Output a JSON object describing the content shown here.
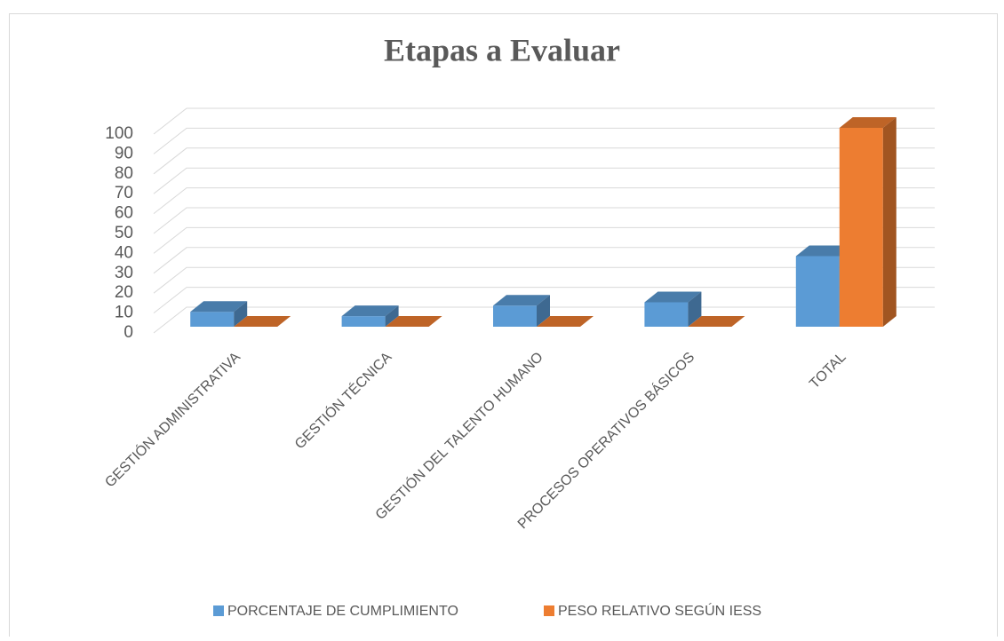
{
  "chart_data": {
    "type": "bar3d",
    "title": "Etapas a Evaluar",
    "categories": [
      "GESTIÓN ADMINISTRATIVA",
      "GESTIÓN TÉCNICA",
      "GESTIÓN DEL TALENTO HUMANO",
      "PROCESOS OPERATIVOS BÁSICOS",
      "TOTAL"
    ],
    "series": [
      {
        "name": "PORCENTAJE DE CUMPLIMIENTO",
        "color": "#5b9bd5",
        "values": [
          7.5,
          5.3,
          10.6,
          12.3,
          35.5
        ]
      },
      {
        "name": "PESO RELATIVO SEGÚN IESS",
        "color": "#ed7d31",
        "values": [
          0,
          0,
          0,
          0,
          100
        ]
      }
    ],
    "ylim": [
      0,
      100
    ],
    "yticks": [
      0,
      10,
      20,
      30,
      40,
      50,
      60,
      70,
      80,
      90,
      100
    ],
    "grid": true,
    "legend": "bottom"
  }
}
